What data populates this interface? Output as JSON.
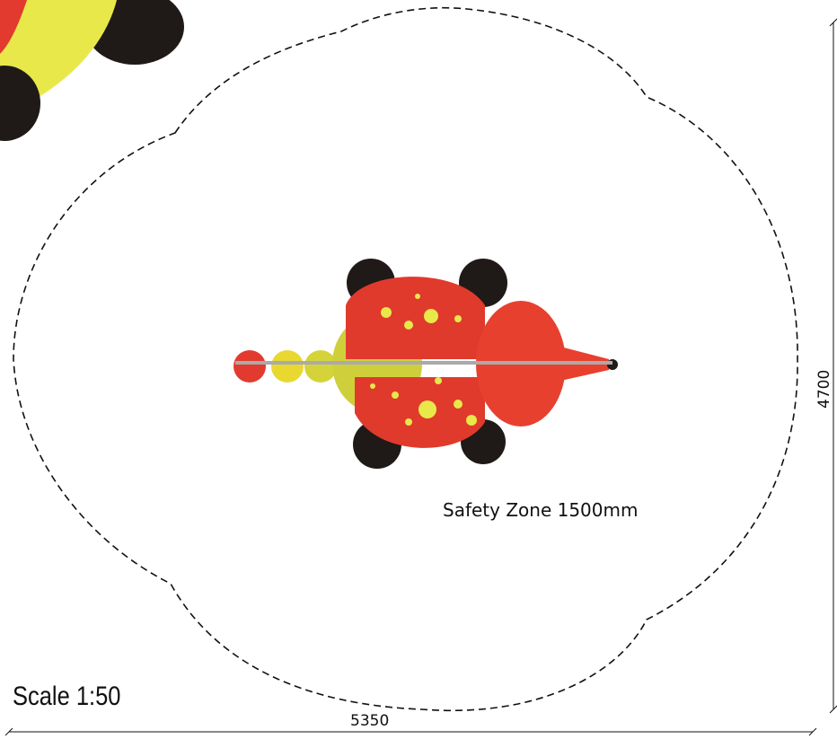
{
  "safety_zone_label": "Safety Zone 1500mm",
  "scale_label": "Scale 1:50",
  "width_dimension": 5350,
  "height_dimension": 4700
}
